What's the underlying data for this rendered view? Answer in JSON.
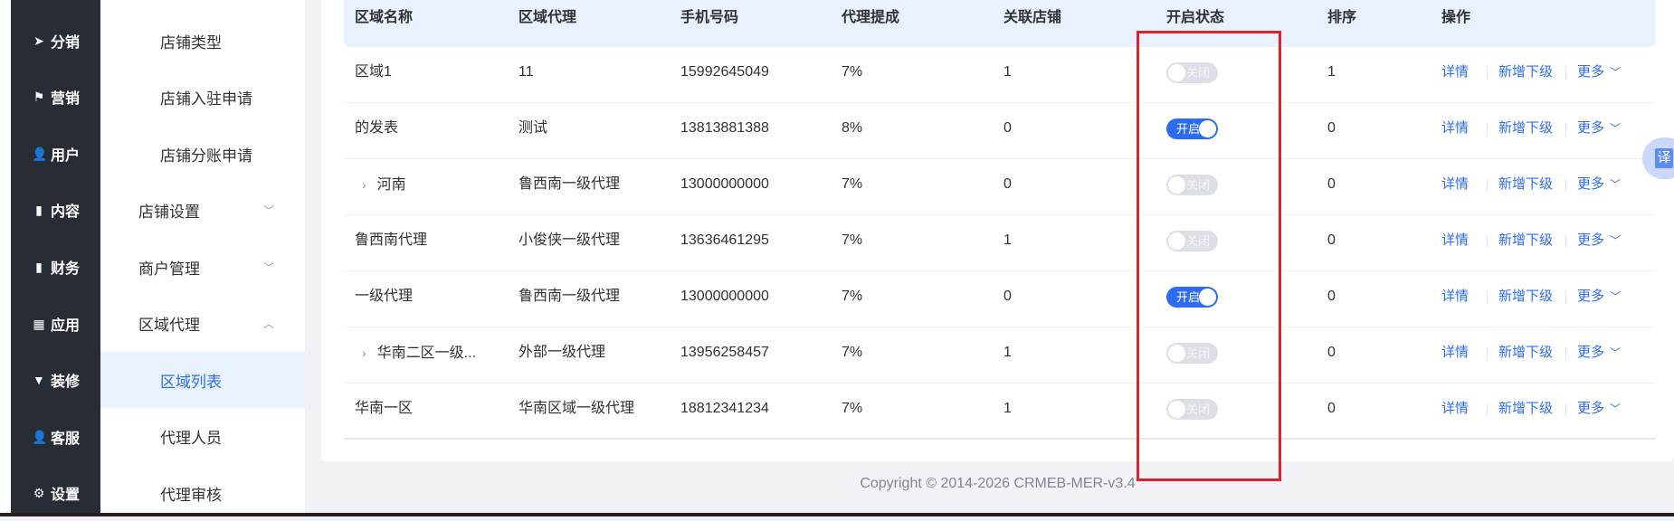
{
  "sidebar": {
    "items": [
      {
        "label": "分销",
        "icon": "send-icon",
        "glyph": "➤"
      },
      {
        "label": "营销",
        "icon": "flag-icon",
        "glyph": "⚑"
      },
      {
        "label": "用户",
        "icon": "user-icon",
        "glyph": "👤"
      },
      {
        "label": "内容",
        "icon": "book-icon",
        "glyph": "▮"
      },
      {
        "label": "财务",
        "icon": "bar-chart-icon",
        "glyph": "▮"
      },
      {
        "label": "应用",
        "icon": "grid-icon",
        "glyph": "▦"
      },
      {
        "label": "装修",
        "icon": "brush-icon",
        "glyph": "▼"
      },
      {
        "label": "客服",
        "icon": "support-icon",
        "glyph": "👤"
      },
      {
        "label": "设置",
        "icon": "gear-icon",
        "glyph": "⚙"
      }
    ]
  },
  "submenu": {
    "items": [
      {
        "label": "店铺类型"
      },
      {
        "label": "店铺入驻申请"
      },
      {
        "label": "店铺分账申请"
      },
      {
        "label": "店铺设置",
        "chevron": "﹀"
      },
      {
        "label": "商户管理",
        "chevron": "﹀"
      },
      {
        "label": "区域代理",
        "chevron": "︿"
      },
      {
        "label": "区域列表"
      },
      {
        "label": "代理人员"
      },
      {
        "label": "代理审核"
      }
    ]
  },
  "table": {
    "columns": [
      "区域名称",
      "区域代理",
      "手机号码",
      "代理提成",
      "关联店铺",
      "开启状态",
      "排序",
      "操作"
    ],
    "actions": {
      "detail": "详情",
      "add_child": "新增下级",
      "more": "更多",
      "more_chevron": "﹀"
    },
    "expand_glyph": "›",
    "rows": [
      {
        "name": "区域1",
        "agent": "11",
        "phone": "15992645049",
        "commission": "7%",
        "stores": "1",
        "status": "关闭",
        "enabled": false,
        "sort": "1",
        "expandable": false
      },
      {
        "name": "的发表",
        "agent": "测试",
        "phone": "13813881388",
        "commission": "8%",
        "stores": "0",
        "status": "开启",
        "enabled": true,
        "sort": "0",
        "expandable": false
      },
      {
        "name": "河南",
        "agent": "鲁西南一级代理",
        "phone": "13000000000",
        "commission": "7%",
        "stores": "0",
        "status": "关闭",
        "enabled": false,
        "sort": "0",
        "expandable": true
      },
      {
        "name": "鲁西南代理",
        "agent": "小俊侠一级代理",
        "phone": "13636461295",
        "commission": "7%",
        "stores": "1",
        "status": "关闭",
        "enabled": false,
        "sort": "0",
        "expandable": false
      },
      {
        "name": "一级代理",
        "agent": "鲁西南一级代理",
        "phone": "13000000000",
        "commission": "7%",
        "stores": "0",
        "status": "开启",
        "enabled": true,
        "sort": "0",
        "expandable": false
      },
      {
        "name": "华南二区一级...",
        "agent": "外部一级代理",
        "phone": "13956258457",
        "commission": "7%",
        "stores": "1",
        "status": "关闭",
        "enabled": false,
        "sort": "0",
        "expandable": true
      },
      {
        "name": "华南一区",
        "agent": "华南区域一级代理",
        "phone": "18812341234",
        "commission": "7%",
        "stores": "1",
        "status": "关闭",
        "enabled": false,
        "sort": "0",
        "expandable": false
      }
    ]
  },
  "footer": {
    "copyright": "Copyright © 2014-2026 CRMEB-MER-v3.4"
  },
  "translate": {
    "label": "译"
  },
  "colors": {
    "accent": "#2d6cf0",
    "sidebar": "#282c34",
    "highlight_box": "#d9232d"
  }
}
